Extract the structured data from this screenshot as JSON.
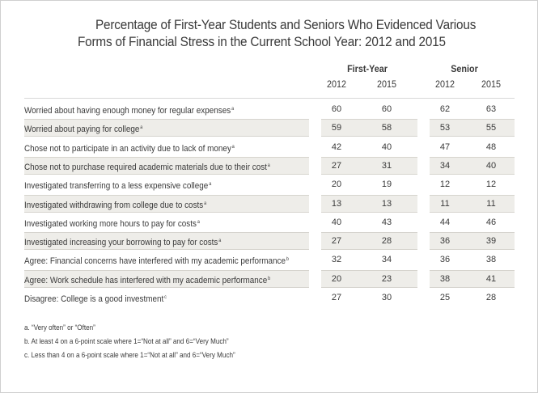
{
  "title": {
    "line1": "Percentage of First-Year Students and Seniors Who Evidenced Various",
    "line2": "Forms of Financial Stress in the Current School Year: 2012 and 2015"
  },
  "groups": {
    "first_year": "First-Year",
    "senior": "Senior"
  },
  "years": [
    "2012",
    "2015",
    "2012",
    "2015"
  ],
  "rows": [
    {
      "label": "Worried about having enough money for regular expenses",
      "note": "a",
      "values": [
        "60",
        "60",
        "62",
        "63"
      ]
    },
    {
      "label": "Worried about paying for college",
      "note": "a",
      "values": [
        "59",
        "58",
        "53",
        "55"
      ]
    },
    {
      "label": "Chose not to participate in an activity due to lack of money",
      "note": "a",
      "values": [
        "42",
        "40",
        "47",
        "48"
      ]
    },
    {
      "label": "Chose not to purchase required academic materials due to their cost",
      "note": "a",
      "values": [
        "27",
        "31",
        "34",
        "40"
      ]
    },
    {
      "label": "Investigated transferring to a less expensive college",
      "note": "a",
      "values": [
        "20",
        "19",
        "12",
        "12"
      ]
    },
    {
      "label": "Investigated withdrawing from college due to costs",
      "note": "a",
      "values": [
        "13",
        "13",
        "11",
        "11"
      ]
    },
    {
      "label": "Investigated working more hours to pay for costs",
      "note": "a",
      "values": [
        "40",
        "43",
        "44",
        "46"
      ]
    },
    {
      "label": "Investigated increasing your borrowing to pay for costs",
      "note": "a",
      "values": [
        "27",
        "28",
        "36",
        "39"
      ]
    },
    {
      "label": "Agree: Financial concerns have interfered with my academic performance",
      "note": "b",
      "values": [
        "32",
        "34",
        "36",
        "38"
      ]
    },
    {
      "label": "Agree: Work schedule has interfered with my academic performance",
      "note": "b",
      "values": [
        "20",
        "23",
        "38",
        "41"
      ]
    },
    {
      "label": "Disagree: College is a good investment",
      "note": "c",
      "values": [
        "27",
        "30",
        "25",
        "28"
      ]
    }
  ],
  "footnotes": [
    "a. “Very often” or “Often”",
    "b. At least 4 on a 6-point scale where 1=“Not at all” and 6=“Very Much”",
    "c. Less than 4 on a 6-point scale where 1=“Not at all” and 6=“Very Much”"
  ],
  "colors": {
    "shaded_row": "#eeede9",
    "text": "#3a3a3a",
    "rule": "#d8d8d8"
  }
}
